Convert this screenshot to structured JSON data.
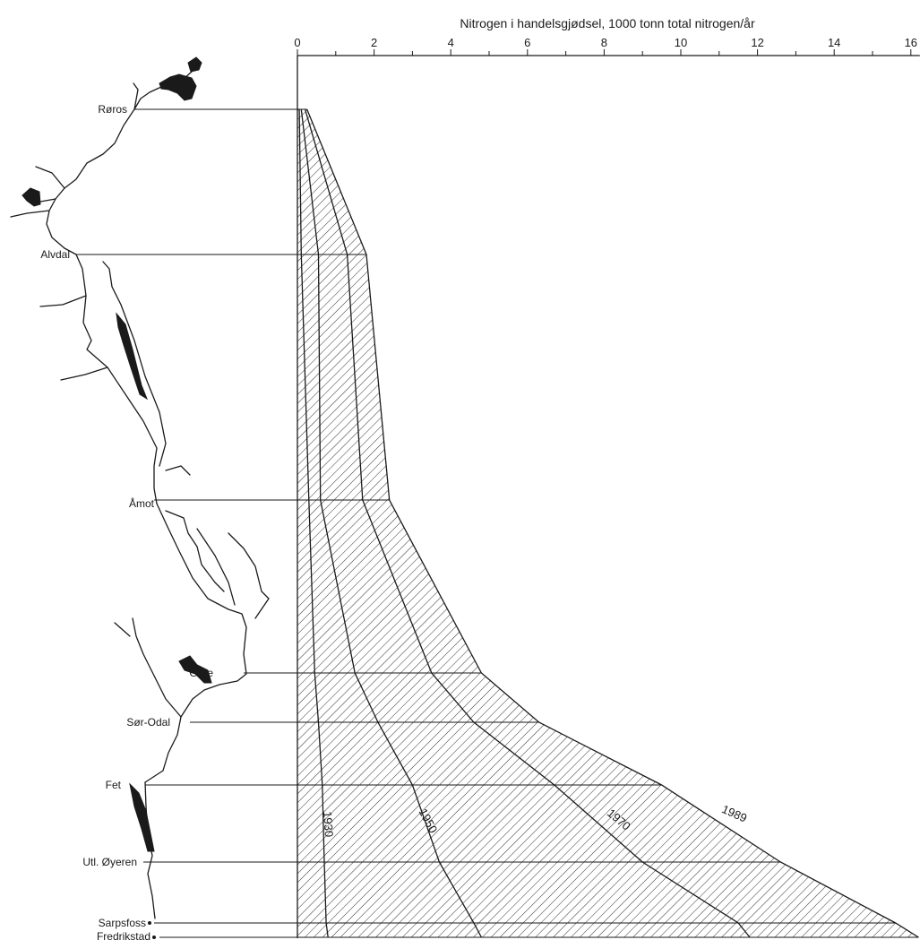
{
  "chart_data": {
    "type": "area",
    "title": "Nitrogen i handelsgjødsel, 1000 tonn total nitrogen/år",
    "xlim": [
      0,
      16
    ],
    "x_ticks": [
      0,
      2,
      4,
      6,
      8,
      10,
      12,
      14,
      16
    ],
    "stations": [
      "Røros",
      "Alvdal",
      "Åmot",
      "Grue",
      "Sør-Odal",
      "Fet",
      "Utl. Øyeren",
      "Sarpsfoss",
      "Fredrikstad"
    ],
    "series": [
      {
        "name": "1930",
        "values": [
          0.05,
          0.1,
          0.3,
          0.45,
          0.55,
          0.65,
          0.7,
          0.75,
          0.8
        ]
      },
      {
        "name": "1950",
        "values": [
          0.1,
          0.55,
          0.6,
          1.5,
          2.1,
          3.0,
          3.7,
          4.6,
          4.8
        ]
      },
      {
        "name": "1970",
        "values": [
          0.2,
          1.3,
          1.7,
          3.5,
          4.6,
          6.7,
          9.0,
          11.5,
          11.8
        ]
      },
      {
        "name": "1989",
        "values": [
          0.25,
          1.8,
          2.4,
          4.8,
          6.3,
          9.5,
          12.6,
          15.6,
          16.2
        ]
      }
    ],
    "hatched_area": true,
    "grid": false
  }
}
